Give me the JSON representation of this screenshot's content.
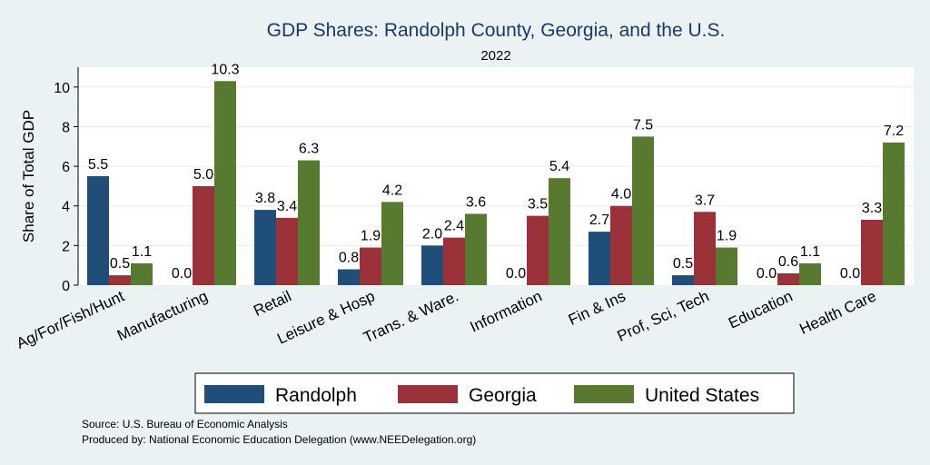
{
  "chart_data": {
    "type": "bar",
    "title": "GDP Shares: Randolph County, Georgia, and the U.S.",
    "subtitle": "2022",
    "ylabel": "Share of Total GDP",
    "xlabel": "",
    "ylim": [
      0,
      11
    ],
    "yticks": [
      0,
      2,
      4,
      6,
      8,
      10
    ],
    "grid": true,
    "legend_position": "bottom",
    "categories": [
      "Ag/For/Fish/Hunt",
      "Manufacturing",
      "Retail",
      "Leisure & Hosp",
      "Trans. & Ware.",
      "Information",
      "Fin & Ins",
      "Prof, Sci, Tech",
      "Education",
      "Health Care"
    ],
    "series": [
      {
        "name": "Randolph",
        "color": "#1f4e79",
        "values": [
          5.5,
          0.0,
          3.8,
          0.8,
          2.0,
          0.0,
          2.7,
          0.5,
          0.0,
          0.0
        ],
        "labels": [
          "5.5",
          "0.0",
          "3.8",
          "0.8",
          "2.0",
          "0.0",
          "2.7",
          "0.5",
          "0.0",
          "0.0"
        ]
      },
      {
        "name": "Georgia",
        "color": "#9b3139",
        "values": [
          0.5,
          5.0,
          3.4,
          1.9,
          2.4,
          3.5,
          4.0,
          3.7,
          0.6,
          3.3
        ],
        "labels": [
          "0.5",
          "5.0",
          "3.4",
          "1.9",
          "2.4",
          "3.5",
          "4.0",
          "3.7",
          "0.6",
          "3.3"
        ]
      },
      {
        "name": "United States",
        "color": "#577a30",
        "values": [
          1.1,
          10.3,
          6.3,
          4.2,
          3.6,
          5.4,
          7.5,
          1.9,
          1.1,
          7.2
        ],
        "labels": [
          "1.1",
          "10.3",
          "6.3",
          "4.2",
          "3.6",
          "5.4",
          "7.5",
          "1.9",
          "1.1",
          "7.2"
        ]
      }
    ]
  },
  "footer": {
    "source": "Source: U.S. Bureau of Economic Analysis",
    "produced_by": "Produced by: National Economic Education Delegation (www.NEEDelegation.org)"
  },
  "colors": {
    "background": "#eaf2f3",
    "plot_background": "#ffffff",
    "title": "#1a3a6b"
  }
}
